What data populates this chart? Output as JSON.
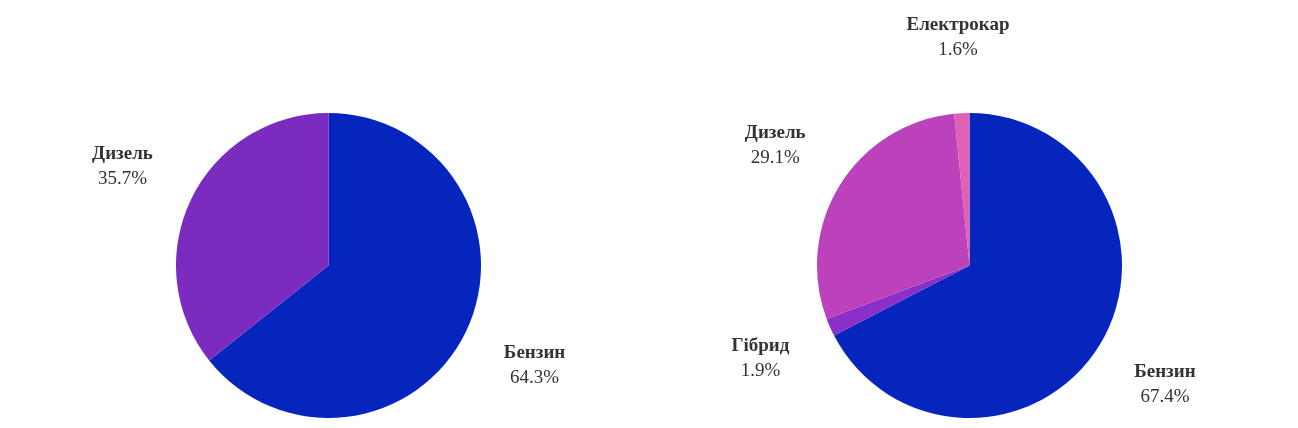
{
  "chart_data": [
    {
      "type": "pie",
      "categories": [
        "Бензин",
        "Дизель"
      ],
      "values": [
        64.3,
        35.7
      ],
      "colors": [
        "#0625bd",
        "#7b2bbf"
      ],
      "value_labels": [
        "64.3%",
        "35.7%"
      ]
    },
    {
      "type": "pie",
      "categories": [
        "Бензин",
        "Гібрид",
        "Дизель",
        "Електрокар"
      ],
      "values": [
        67.4,
        1.9,
        29.1,
        1.6
      ],
      "colors": [
        "#0625bd",
        "#8a2fc8",
        "#bb42bb",
        "#e061b3"
      ],
      "value_labels": [
        "67.4%",
        "1.9%",
        "29.1%",
        "1.6%"
      ]
    }
  ]
}
